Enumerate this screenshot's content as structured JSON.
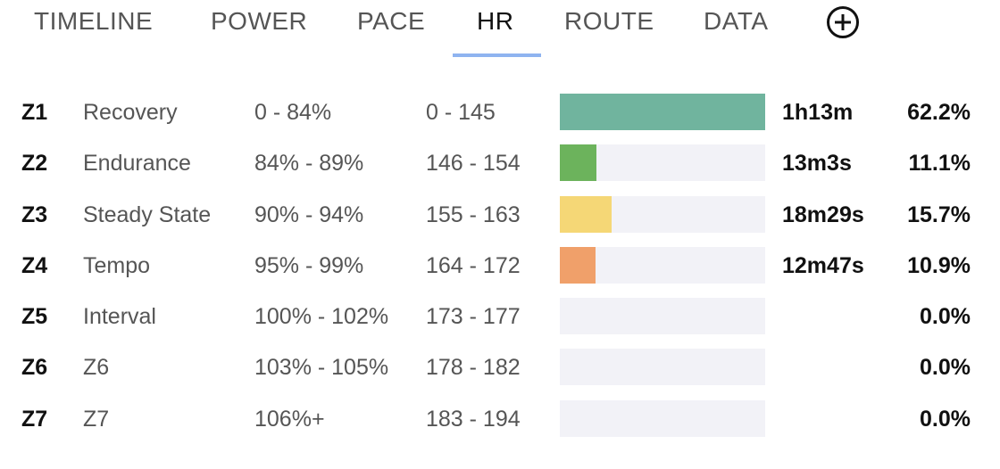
{
  "tabs": [
    {
      "label": "TIMELINE",
      "active": false
    },
    {
      "label": "POWER",
      "active": false
    },
    {
      "label": "PACE",
      "active": false
    },
    {
      "label": "HR",
      "active": true
    },
    {
      "label": "ROUTE",
      "active": false
    },
    {
      "label": "DATA",
      "active": false
    }
  ],
  "add_tab_icon": "plus-circle-icon",
  "colors": {
    "active_tab_underline": "#8fb4f0",
    "bar_track": "#f2f2f7",
    "zone_1": "#70b49e",
    "zone_2": "#6cb35c",
    "zone_3": "#f5d776",
    "zone_4": "#f0a06a"
  },
  "zones": [
    {
      "code": "Z1",
      "name": "Recovery",
      "percent_range": "0 - 84%",
      "bpm_range": "0 - 145",
      "time": "1h13m",
      "share": "62.2%",
      "bar_fraction": 1.0,
      "color": "#70b49e"
    },
    {
      "code": "Z2",
      "name": "Endurance",
      "percent_range": "84% - 89%",
      "bpm_range": "146 - 154",
      "time": "13m3s",
      "share": "11.1%",
      "bar_fraction": 0.178,
      "color": "#6cb35c"
    },
    {
      "code": "Z3",
      "name": "Steady State",
      "percent_range": "90% - 94%",
      "bpm_range": "155 - 163",
      "time": "18m29s",
      "share": "15.7%",
      "bar_fraction": 0.252,
      "color": "#f5d776"
    },
    {
      "code": "Z4",
      "name": "Tempo",
      "percent_range": "95% - 99%",
      "bpm_range": "164 - 172",
      "time": "12m47s",
      "share": "10.9%",
      "bar_fraction": 0.175,
      "color": "#f0a06a"
    },
    {
      "code": "Z5",
      "name": "Interval",
      "percent_range": "100% - 102%",
      "bpm_range": "173 - 177",
      "time": "",
      "share": "0.0%",
      "bar_fraction": 0.0,
      "color": ""
    },
    {
      "code": "Z6",
      "name": "Z6",
      "percent_range": "103% - 105%",
      "bpm_range": "178 - 182",
      "time": "",
      "share": "0.0%",
      "bar_fraction": 0.0,
      "color": ""
    },
    {
      "code": "Z7",
      "name": "Z7",
      "percent_range": "106%+",
      "bpm_range": "183 - 194",
      "time": "",
      "share": "0.0%",
      "bar_fraction": 0.0,
      "color": ""
    }
  ]
}
